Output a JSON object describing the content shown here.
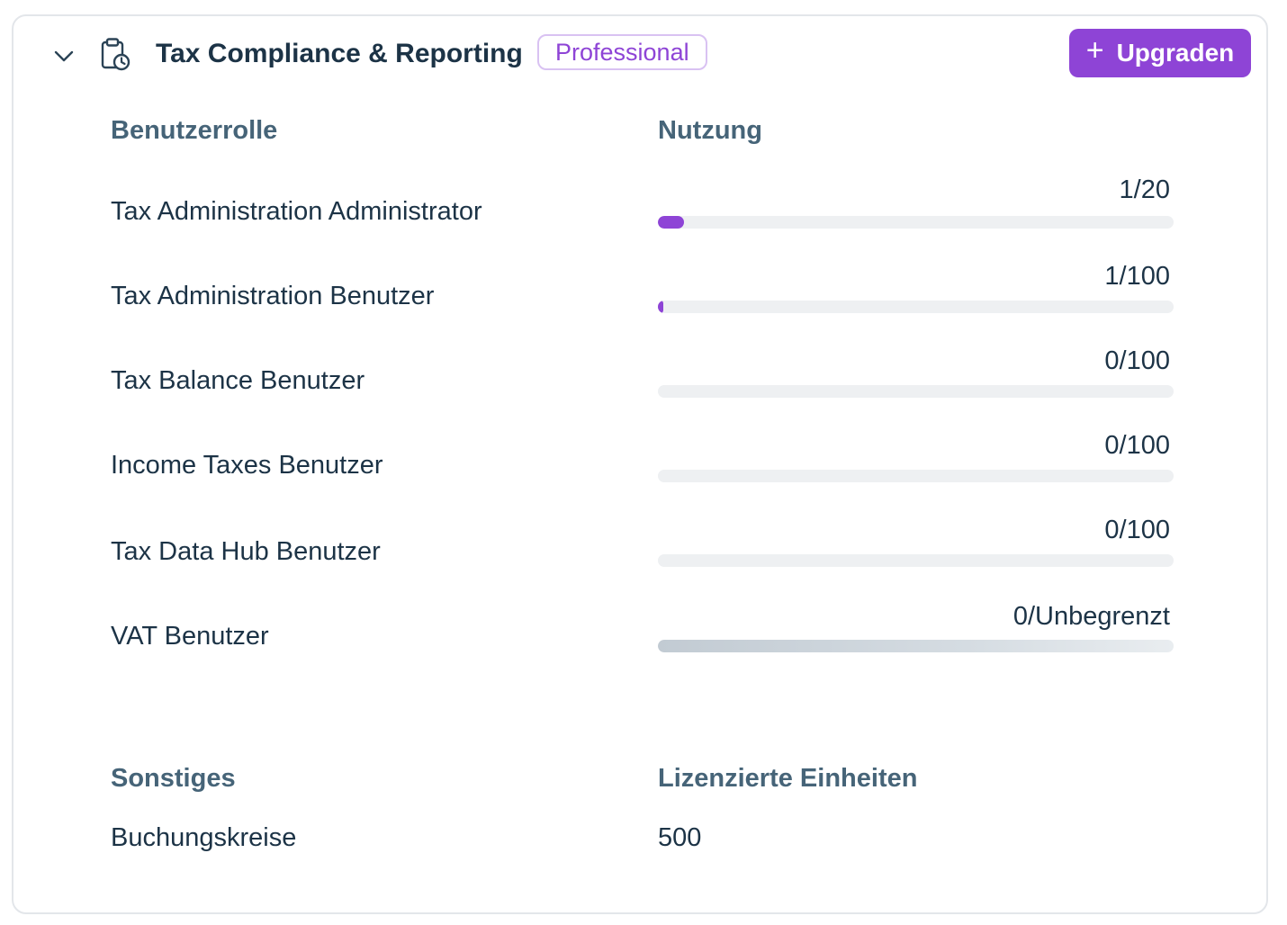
{
  "card": {
    "title": "Tax Compliance & Reporting",
    "plan_badge": "Professional",
    "upgrade_button": {
      "icon": "plus-icon",
      "label": "Upgraden"
    },
    "collapse_icon": "chevron-down-icon",
    "product_icon": "clipboard-clock-icon",
    "accent_color": "#8e44d6"
  },
  "roles_table": {
    "headers": {
      "role": "Benutzerrolle",
      "usage": "Nutzung"
    },
    "rows": [
      {
        "label": "Tax Administration Administrator",
        "usage": "1/20",
        "used": 1,
        "limit": 20
      },
      {
        "label": "Tax Administration Benutzer",
        "usage": "1/100",
        "used": 1,
        "limit": 100
      },
      {
        "label": "Tax Balance Benutzer",
        "usage": "0/100",
        "used": 0,
        "limit": 100
      },
      {
        "label": "Income Taxes Benutzer",
        "usage": "0/100",
        "used": 0,
        "limit": 100
      },
      {
        "label": "Tax Data Hub Benutzer",
        "usage": "0/100",
        "used": 0,
        "limit": 100
      },
      {
        "label": "VAT Benutzer",
        "usage": "0/Unbegrenzt",
        "used": 0,
        "limit": null
      }
    ]
  },
  "other_table": {
    "headers": {
      "other": "Sonstiges",
      "licensed_units": "Lizenzierte Einheiten"
    },
    "rows": [
      {
        "label": "Buchungskreise",
        "value": "500"
      }
    ]
  }
}
